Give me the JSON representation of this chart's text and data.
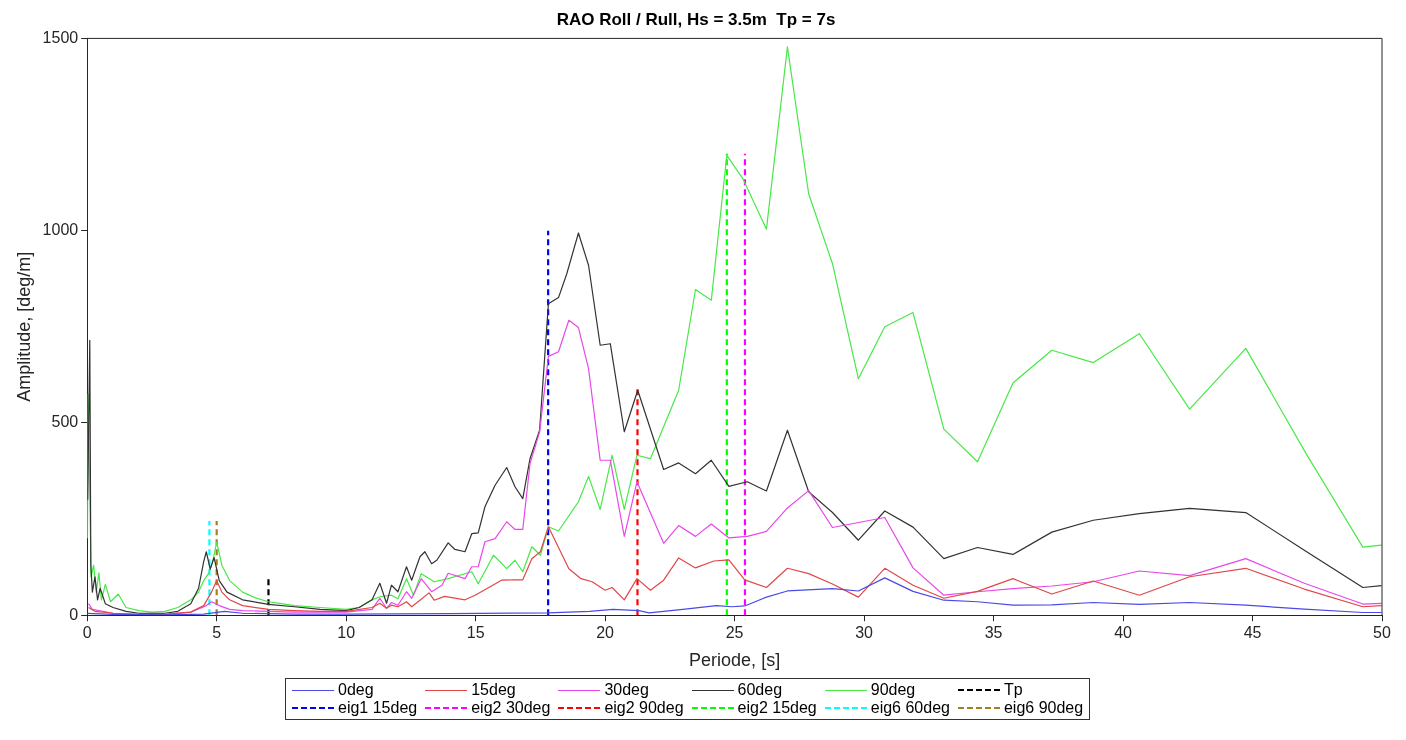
{
  "chart_data": {
    "type": "line",
    "title": "RAO Roll / Rull, Hs = 3.5m  Tp = 7s",
    "xlabel": "Periode, [s]",
    "ylabel": "Amplitude, [deg/m]",
    "xlim": [
      0,
      50
    ],
    "xticks": [
      0,
      5,
      10,
      15,
      20,
      25,
      30,
      35,
      40,
      45,
      50
    ],
    "ylim": [
      0,
      1500
    ],
    "yticks": [
      0,
      500,
      1000,
      1500
    ],
    "grid": false,
    "legend": "bottom",
    "marker": "none",
    "line_style": "solid",
    "series": [
      {
        "name": "0deg",
        "color": "#4a4ae6",
        "x": [
          0,
          1,
          3,
          4.5,
          5.3,
          6,
          8,
          10,
          14,
          17.8,
          19.4,
          20.3,
          21.3,
          21.7,
          23,
          24.3,
          24.9,
          25.39,
          26.23,
          27.04,
          28.78,
          29.78,
          30.8,
          31.89,
          33.08,
          34.38,
          35.75,
          37.25,
          38.85,
          40.63,
          42.57,
          44.74,
          47.0,
          49.26,
          49.98
        ],
        "values": [
          5,
          2,
          1,
          3,
          10,
          5,
          3,
          3,
          4,
          6,
          10,
          15,
          12,
          6,
          15,
          25,
          22,
          24,
          47,
          63,
          69,
          63,
          97,
          62,
          39,
          35,
          26,
          27,
          33,
          28,
          33,
          26,
          16,
          7,
          7
        ]
      },
      {
        "name": "15deg",
        "color": "#e04848",
        "x": [
          0.05,
          0.3,
          1,
          2,
          3,
          4,
          4.5,
          4.8,
          5.0,
          5.2,
          5.5,
          6,
          7,
          8,
          9,
          10,
          11,
          11.3,
          11.56,
          11.75,
          12.0,
          12.33,
          12.53,
          12.85,
          13.2,
          13.4,
          13.8,
          14.59,
          14.98,
          15.56,
          16.0,
          16.44,
          16.82,
          17.17,
          17.5,
          17.81,
          18.6,
          19.07,
          19.5,
          20.0,
          20.27,
          20.74,
          21.23,
          21.75,
          22.26,
          22.84,
          23.49,
          24.2,
          24.78,
          25.39,
          26.23,
          27.04,
          27.86,
          28.78,
          29.78,
          30.8,
          31.89,
          33.08,
          34.38,
          35.75,
          37.25,
          38.85,
          40.63,
          42.57,
          44.74,
          47.0,
          49.26,
          49.98
        ],
        "values": [
          20,
          10,
          5,
          2,
          2,
          8,
          25,
          60,
          90,
          60,
          40,
          25,
          15,
          12,
          10,
          10,
          20,
          31,
          18,
          26,
          22,
          35,
          22,
          39,
          58,
          39,
          49,
          40,
          52,
          74,
          91,
          92,
          92,
          147,
          165,
          230,
          121,
          95,
          87,
          65,
          72,
          40,
          95,
          65,
          91,
          149,
          123,
          141,
          144,
          92,
          72,
          122,
          108,
          81,
          47,
          122,
          78,
          44,
          62,
          95,
          55,
          89,
          52,
          100,
          122,
          68,
          22,
          25
        ]
      },
      {
        "name": "30deg",
        "color": "#e848e8",
        "x": [
          0.05,
          0.2,
          1,
          2,
          3,
          4,
          4.6,
          4.8,
          5.1,
          5.5,
          6,
          7,
          8,
          10,
          11,
          11.3,
          11.56,
          11.75,
          12.0,
          12.33,
          12.53,
          12.9,
          13.3,
          13.7,
          13.94,
          14.59,
          14.85,
          15.1,
          15.36,
          15.75,
          16.2,
          16.52,
          16.82,
          17.1,
          17.47,
          17.81,
          18.2,
          18.6,
          18.97,
          19.36,
          19.81,
          20.2,
          20.74,
          21.23,
          22.26,
          22.84,
          23.49,
          24.1,
          24.78,
          25.49,
          26.23,
          27.04,
          27.86,
          28.78,
          30.8,
          31.89,
          33.08,
          34.38,
          35.75,
          37.25,
          38.85,
          40.63,
          42.57,
          44.74,
          47.0,
          49.26,
          49.98
        ],
        "values": [
          30,
          15,
          5,
          2,
          2,
          8,
          25,
          35,
          25,
          15,
          12,
          10,
          8,
          8,
          15,
          44,
          18,
          33,
          26,
          61,
          44,
          95,
          61,
          78,
          109,
          95,
          126,
          126,
          191,
          199,
          243,
          223,
          223,
          394,
          476,
          673,
          685,
          767,
          748,
          641,
          403,
          403,
          205,
          347,
          187,
          233,
          205,
          237,
          201,
          205,
          218,
          279,
          324,
          228,
          254,
          123,
          52,
          61,
          69,
          76,
          87,
          115,
          103,
          147,
          83,
          29,
          31
        ]
      },
      {
        "name": "60deg",
        "color": "#333333",
        "x": [
          0.02,
          0.1,
          0.14,
          0.2,
          0.3,
          0.4,
          0.5,
          0.7,
          1,
          1.5,
          2,
          3,
          3.5,
          4,
          4.3,
          4.5,
          4.6,
          4.75,
          4.9,
          5.1,
          5.4,
          6,
          7,
          8,
          9,
          10,
          10.5,
          11,
          11.3,
          11.56,
          11.75,
          12.0,
          12.33,
          12.53,
          12.85,
          13.04,
          13.3,
          13.5,
          13.94,
          14.2,
          14.59,
          14.85,
          15.1,
          15.36,
          15.75,
          16.2,
          16.52,
          16.82,
          17.1,
          17.47,
          17.81,
          18.2,
          18.52,
          18.97,
          19.36,
          19.81,
          20.2,
          20.74,
          21.26,
          22.26,
          22.84,
          23.49,
          24.1,
          24.78,
          25.49,
          26.23,
          27.04,
          27.86,
          28.78,
          29.78,
          30.8,
          31.89,
          33.08,
          34.38,
          35.75,
          37.25,
          38.85,
          40.63,
          42.57,
          44.74,
          47.0,
          49.26,
          49.98
        ],
        "values": [
          300,
          715,
          130,
          60,
          100,
          40,
          70,
          30,
          20,
          10,
          5,
          5,
          10,
          30,
          70,
          140,
          165,
          120,
          150,
          90,
          60,
          40,
          28,
          22,
          15,
          12,
          20,
          40,
          83,
          31,
          78,
          61,
          126,
          91,
          152,
          165,
          134,
          143,
          188,
          171,
          165,
          212,
          214,
          282,
          338,
          384,
          334,
          303,
          407,
          481,
          810,
          826,
          888,
          994,
          910,
          702,
          706,
          477,
          585,
          379,
          396,
          368,
          403,
          335,
          347,
          323,
          481,
          321,
          267,
          195,
          271,
          229,
          147,
          176,
          158,
          216,
          247,
          264,
          278,
          267,
          169,
          72,
          77
        ]
      },
      {
        "name": "90deg",
        "color": "#48e848",
        "x": [
          0.01,
          0.04,
          0.15,
          0.25,
          0.35,
          0.45,
          0.55,
          0.7,
          0.9,
          1.2,
          1.5,
          2,
          2.5,
          3,
          3.5,
          4,
          4.3,
          4.5,
          4.7,
          4.85,
          5.0,
          5.2,
          5.5,
          6,
          6.5,
          7,
          7.5,
          8,
          9,
          10,
          10.5,
          11,
          11.3,
          11.75,
          12.0,
          12.33,
          12.6,
          12.9,
          13.4,
          13.94,
          14.85,
          15.1,
          15.69,
          16.2,
          16.52,
          16.82,
          17.17,
          17.5,
          17.81,
          18.2,
          18.97,
          19.36,
          19.81,
          20.27,
          20.74,
          21.23,
          21.75,
          22.84,
          23.49,
          24.1,
          24.7,
          25.31,
          26.23,
          27.04,
          27.86,
          28.78,
          29.78,
          30.8,
          31.89,
          33.08,
          34.38,
          35.75,
          37.25,
          38.85,
          40.63,
          42.57,
          44.74,
          47.08,
          49.26,
          49.98
        ],
        "values": [
          200,
          575,
          100,
          130,
          60,
          110,
          40,
          80,
          35,
          55,
          20,
          12,
          8,
          10,
          20,
          40,
          60,
          90,
          110,
          140,
          190,
          130,
          90,
          60,
          45,
          35,
          30,
          25,
          20,
          15,
          20,
          40,
          48,
          52,
          43,
          95,
          52,
          108,
          87,
          95,
          113,
          82,
          156,
          121,
          143,
          113,
          178,
          156,
          230,
          219,
          295,
          361,
          275,
          416,
          275,
          416,
          407,
          585,
          847,
          819,
          1196,
          1136,
          1004,
          1478,
          1096,
          914,
          615,
          750,
          787,
          484,
          399,
          604,
          689,
          657,
          732,
          536,
          694,
          419,
          177,
          182
        ]
      },
      {
        "name": "Tp",
        "color": "#000000",
        "line_style": "dashed",
        "x": [
          7,
          7
        ],
        "values": [
          0,
          100
        ]
      },
      {
        "name": "eig1 15deg",
        "color": "#0000ff",
        "line_style": "dashed",
        "x": [
          17.8,
          17.8
        ],
        "values": [
          0,
          1000
        ]
      },
      {
        "name": "eig2 30deg",
        "color": "#ff00ff",
        "line_style": "dashed",
        "x": [
          25.4,
          25.4
        ],
        "values": [
          0,
          1200
        ]
      },
      {
        "name": "eig2 90deg",
        "color": "#ff0000",
        "line_style": "dashed",
        "x": [
          21.25,
          21.25
        ],
        "values": [
          0,
          590
        ]
      },
      {
        "name": "eig2 15deg",
        "color": "#00ff00",
        "line_style": "dashed",
        "x": [
          24.7,
          24.7
        ],
        "values": [
          0,
          1200
        ]
      },
      {
        "name": "eig6 60deg",
        "color": "#00ffff",
        "line_style": "dashed",
        "x": [
          4.72,
          4.72
        ],
        "values": [
          0,
          245
        ]
      },
      {
        "name": "eig6 90deg",
        "color": "#a08020",
        "line_style": "dashed",
        "x": [
          5.0,
          5.0
        ],
        "values": [
          0,
          245
        ]
      }
    ]
  }
}
